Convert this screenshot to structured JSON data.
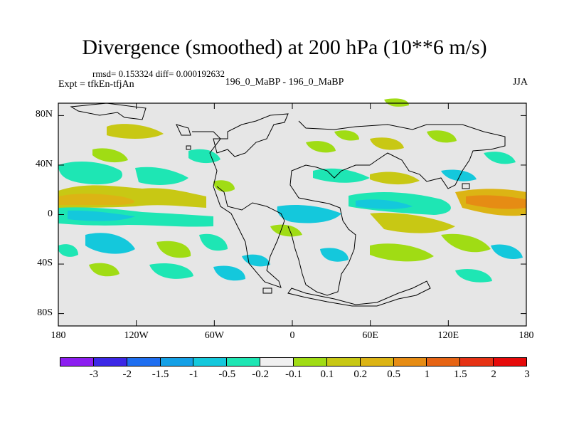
{
  "title": "Divergence (smoothed) at 200 hPa (10**6 m/s)",
  "stats": "rmsd= 0.153324 diff= 0.000192632",
  "expt": "Expt = tfkEn-tfjAn",
  "runs": "196_0_MaBP - 196_0_MaBP",
  "season": "JJA",
  "yaxis": {
    "ticks": [
      {
        "label": "80N",
        "lat": 80
      },
      {
        "label": "40N",
        "lat": 40
      },
      {
        "label": "0",
        "lat": 0
      },
      {
        "label": "40S",
        "lat": -40
      },
      {
        "label": "80S",
        "lat": -80
      }
    ]
  },
  "xaxis": {
    "ticks": [
      {
        "label": "180",
        "lon": -180
      },
      {
        "label": "120W",
        "lon": -120
      },
      {
        "label": "60W",
        "lon": -60
      },
      {
        "label": "0",
        "lon": 0
      },
      {
        "label": "60E",
        "lon": 60
      },
      {
        "label": "120E",
        "lon": 120
      },
      {
        "label": "180",
        "lon": 180
      }
    ]
  },
  "colorbar": {
    "colors": [
      "#8c1ef0",
      "#3c28e6",
      "#1e6ef0",
      "#14a0e6",
      "#14c8dc",
      "#1ee6b4",
      "#f0f0f0",
      "#a0dc14",
      "#c8c814",
      "#dcb414",
      "#e68c14",
      "#e66414",
      "#e63214",
      "#e60a0a"
    ],
    "labels": [
      "-3",
      "-2",
      "-1.5",
      "-1",
      "-0.5",
      "-0.2",
      "-0.1",
      "0.1",
      "0.2",
      "0.5",
      "1",
      "1.5",
      "2",
      "3"
    ]
  },
  "map_style": {
    "ocean": "#e6e6e6",
    "coast": "#000000"
  }
}
